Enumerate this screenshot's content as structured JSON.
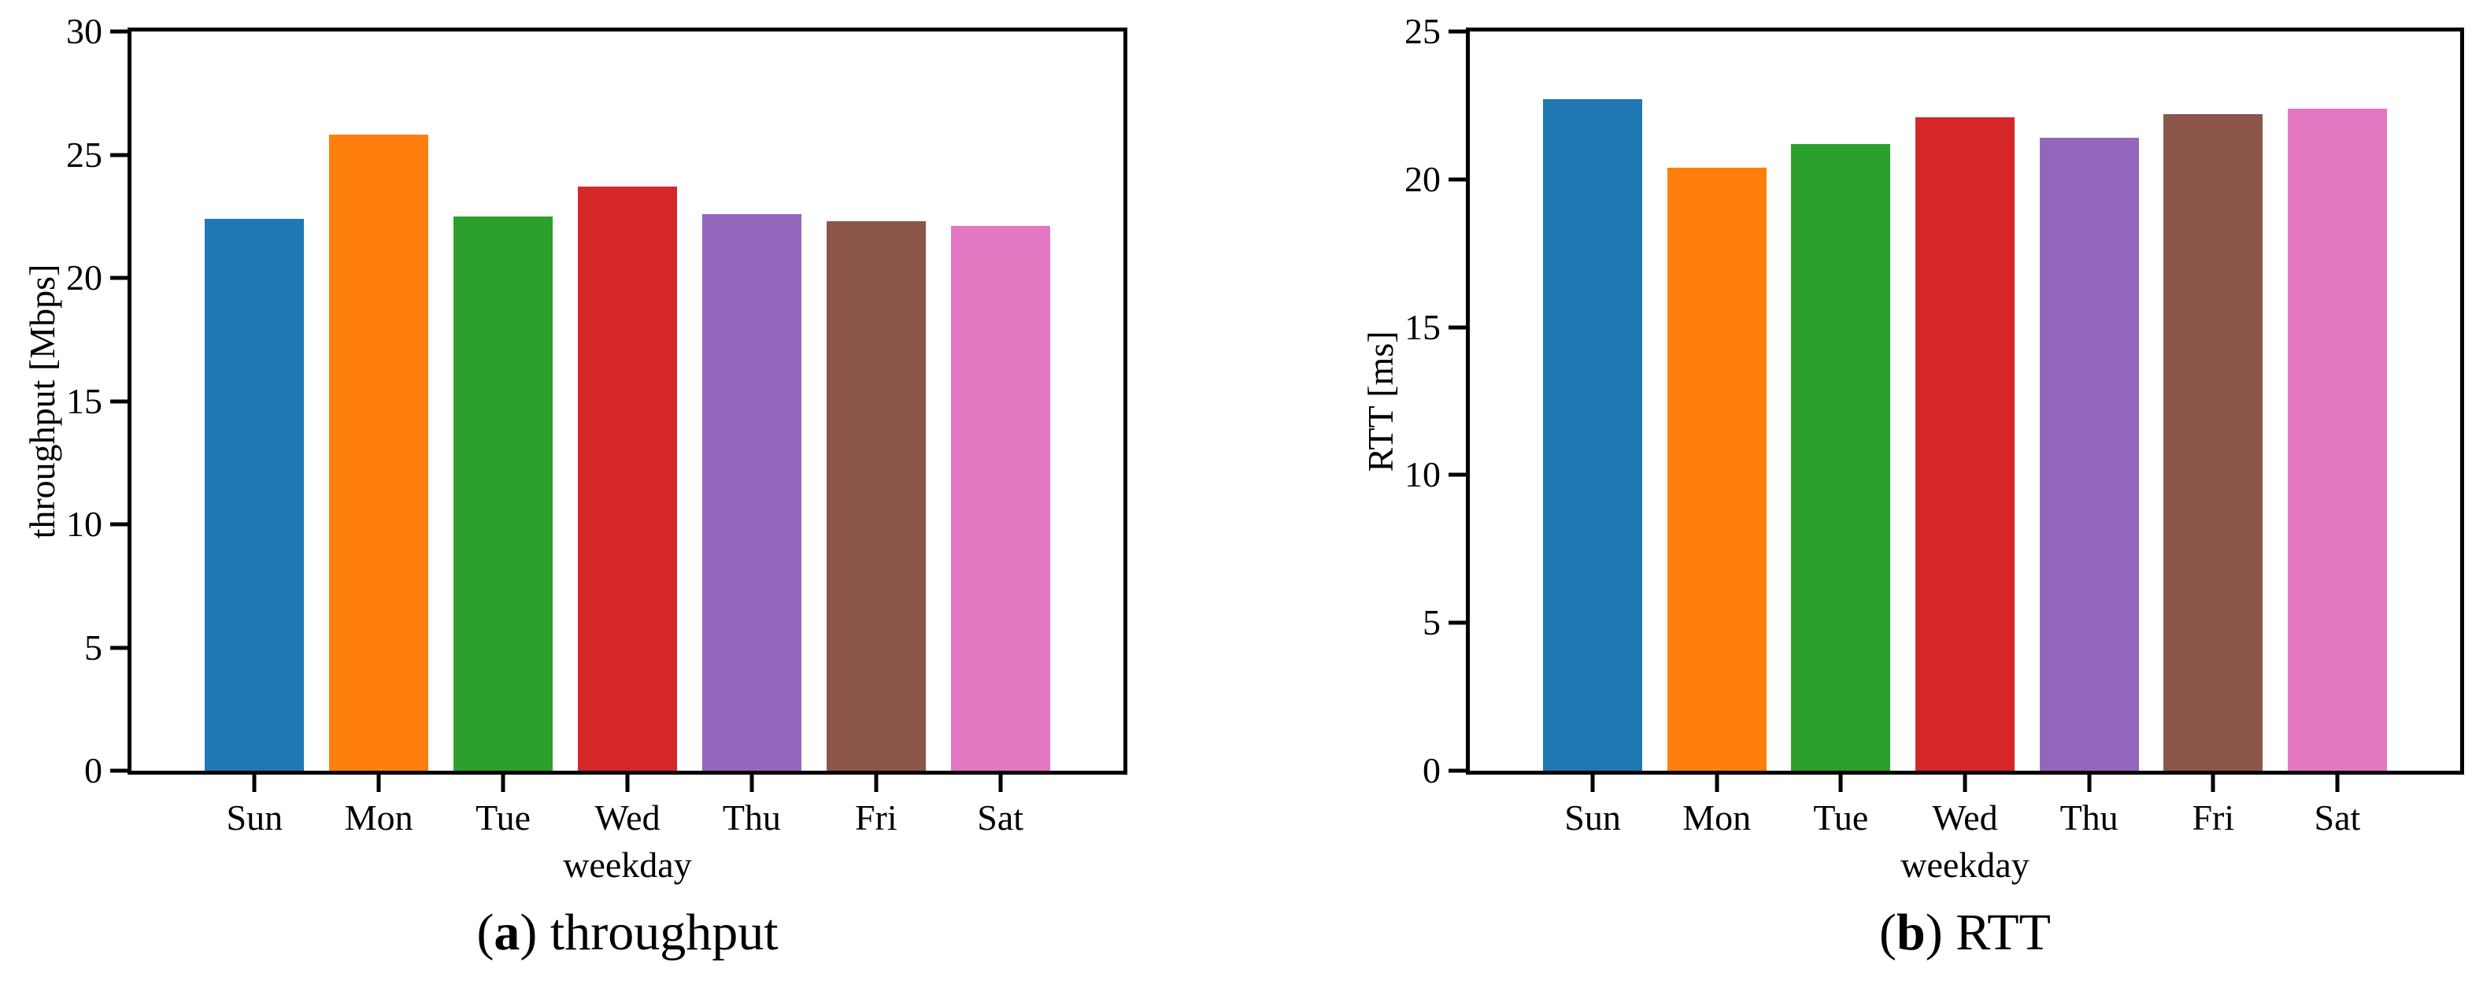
{
  "figure": {
    "background_color": "#ffffff",
    "text_color": "#000000",
    "spine_color": "#000000"
  },
  "chart_data": [
    {
      "id": "a",
      "type": "bar",
      "caption": {
        "paren_open": "(",
        "letter": "a",
        "paren_close": ")",
        "label": "throughput"
      },
      "categories": [
        "Sun",
        "Mon",
        "Tue",
        "Wed",
        "Thu",
        "Fri",
        "Sat"
      ],
      "values": [
        22.4,
        25.8,
        22.5,
        23.7,
        22.6,
        22.3,
        22.1
      ],
      "xlabel": "weekday",
      "ylabel": "throughput [Mbps]",
      "ylim": [
        0,
        30
      ],
      "yticks": [
        0,
        5,
        10,
        15,
        20,
        25,
        30
      ],
      "bar_colors": [
        "#1f77b4",
        "#ff7f0e",
        "#2ca02c",
        "#d62728",
        "#9467bd",
        "#8c564b",
        "#e377c2"
      ],
      "grid": false,
      "legend": null
    },
    {
      "id": "b",
      "type": "bar",
      "caption": {
        "paren_open": "(",
        "letter": "b",
        "paren_close": ")",
        "label": "RTT"
      },
      "categories": [
        "Sun",
        "Mon",
        "Tue",
        "Wed",
        "Thu",
        "Fri",
        "Sat"
      ],
      "values": [
        22.7,
        20.4,
        21.2,
        22.1,
        21.4,
        22.2,
        22.4
      ],
      "xlabel": "weekday",
      "ylabel": "RTT [ms]",
      "ylim": [
        0,
        25
      ],
      "yticks": [
        0,
        5,
        10,
        15,
        20,
        25
      ],
      "bar_colors": [
        "#1f77b4",
        "#ff7f0e",
        "#2ca02c",
        "#d62728",
        "#9467bd",
        "#8c564b",
        "#e377c2"
      ],
      "grid": false,
      "legend": null
    }
  ]
}
